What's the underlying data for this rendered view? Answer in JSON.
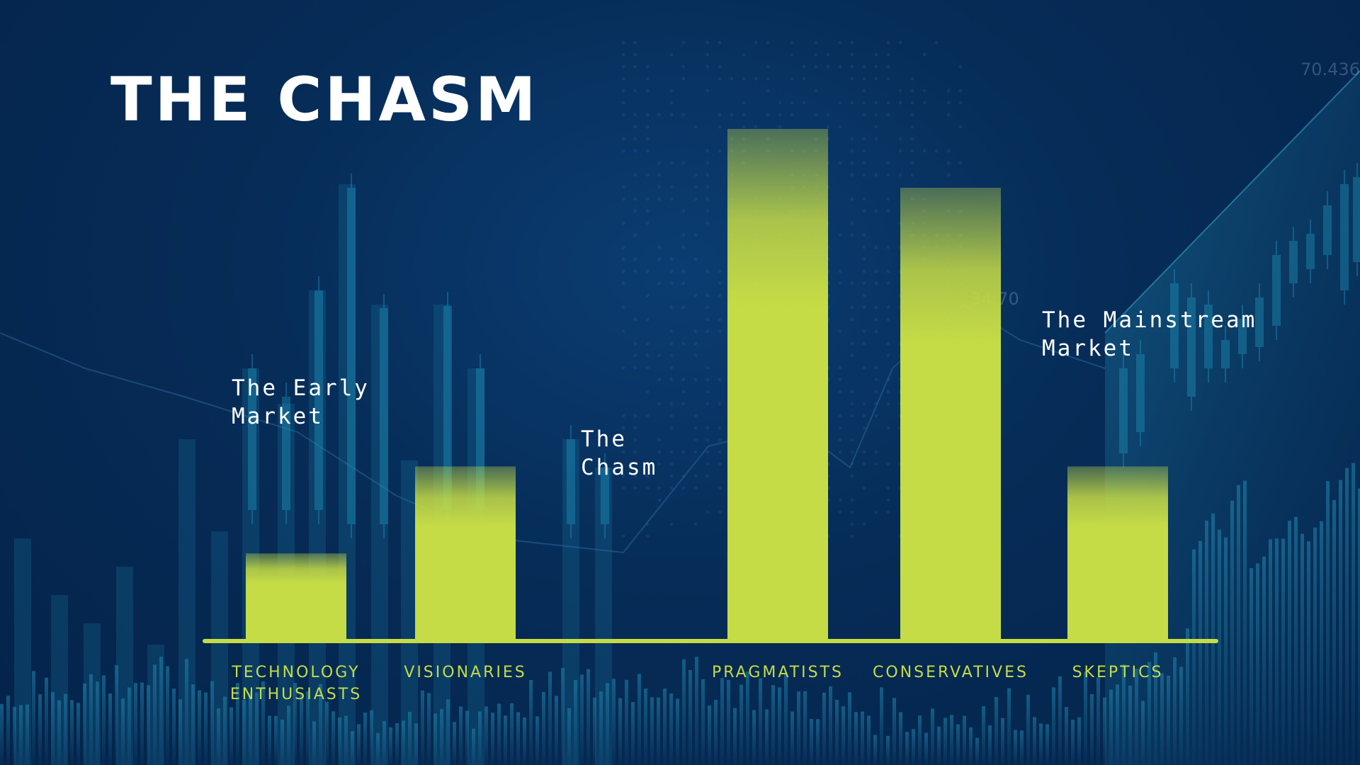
{
  "title": "THE CHASM",
  "ticker": {
    "top_value": "70.436",
    "mid_value": "34.70"
  },
  "colors": {
    "bar": "#c6dc46",
    "text": "#ffffff",
    "category": "#c5dc47",
    "background": "#04234a"
  },
  "chart_data": {
    "type": "bar",
    "categories": [
      "TECHNOLOGY\nENTHUSIASTS",
      "VISIONARIES",
      "",
      "PRAGMATISTS",
      "CONSERVATIVES",
      "SKEPTICS"
    ],
    "values": [
      17,
      34,
      0,
      100,
      88.5,
      34
    ],
    "ylim": [
      0,
      100
    ],
    "grid": false,
    "annotations": [
      {
        "text": "The Early\nMarket"
      },
      {
        "text": "The\nChasm"
      },
      {
        "text": "The Mainstream\nMarket"
      }
    ]
  }
}
